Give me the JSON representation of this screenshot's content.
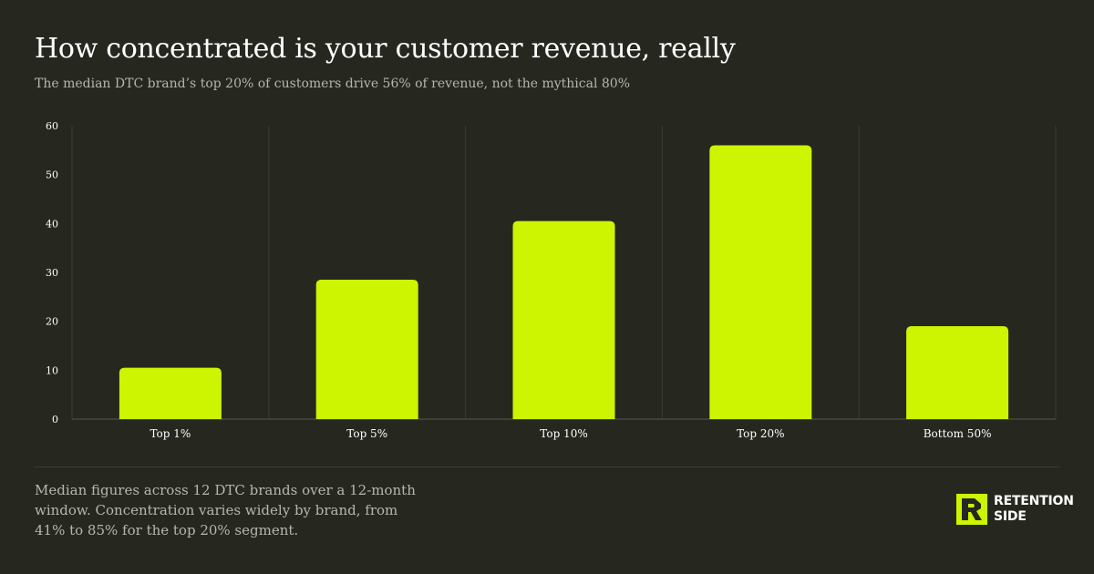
{
  "header": {
    "title": "How concentrated is your customer revenue, really",
    "subtitle": "The median DTC brand’s top 20% of customers drive 56% of revenue, not the mythical 80%"
  },
  "footer": {
    "note": "Median figures across 12 DTC brands over a 12-month window. Concentration varies widely by brand, from 41% to 85% for the top 20% segment.",
    "brand_line1": "RETENTION",
    "brand_line2": "SIDE"
  },
  "colors": {
    "background": "#262820",
    "bar": "#cdf400",
    "grid": "#3a3c32",
    "axis_text": "#ffffff",
    "muted_text": "#b6b7ac"
  },
  "chart_data": {
    "type": "bar",
    "categories": [
      "Top 1%",
      "Top 5%",
      "Top 10%",
      "Top 20%",
      "Bottom 50%"
    ],
    "values": [
      10.5,
      28.5,
      40.5,
      56,
      19
    ],
    "ylim": [
      0,
      60
    ],
    "yticks": [
      0,
      10,
      20,
      30,
      40,
      50,
      60
    ],
    "grid": "vertical separators between categories",
    "legend": "none"
  }
}
